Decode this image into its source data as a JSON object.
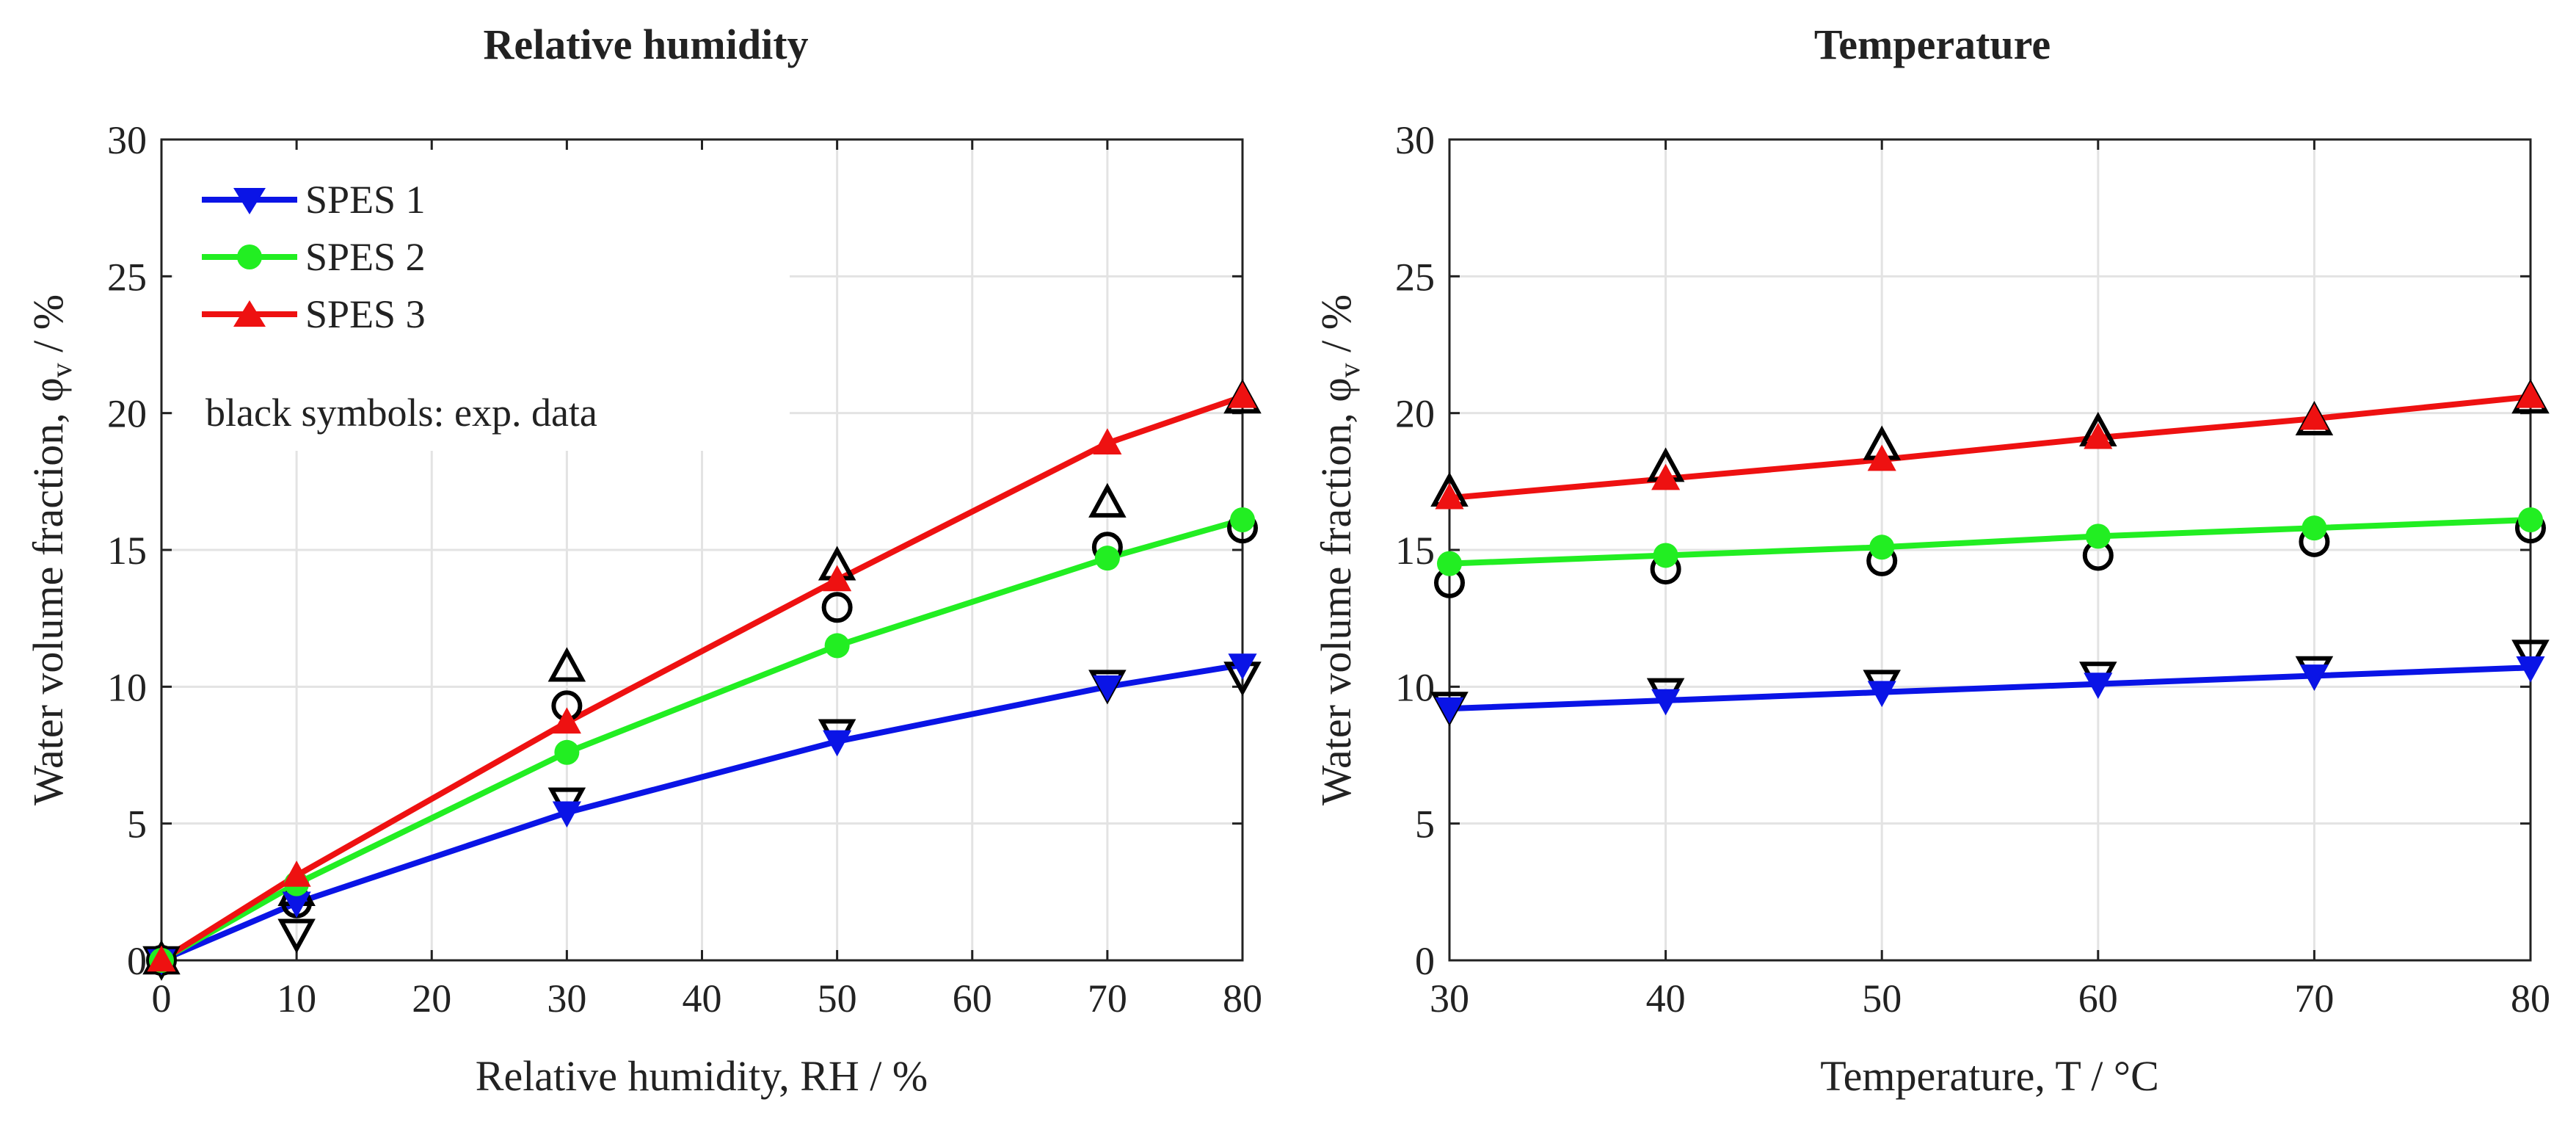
{
  "figure": {
    "legend": {
      "entries": [
        "SPES 1",
        "SPES 2",
        "SPES 3"
      ],
      "note": "black symbols: exp. data",
      "placement": "top-left (left panel)"
    }
  },
  "colors": {
    "spes1": "#0a14e6",
    "spes2": "#22ee22",
    "spes3": "#ee1111",
    "experimental": "#000000",
    "grid": "#e3e3e3",
    "axes": "#222222"
  },
  "chart_data": [
    {
      "type": "line",
      "title": "Relative humidity",
      "xlabel": "Relative humidity, RH / %",
      "ylabel": "Water volume fraction, φ",
      "ylabel_sub": "v",
      "ylabel_suffix": " / %",
      "xlim": [
        0,
        80
      ],
      "ylim": [
        0,
        30
      ],
      "xticks": [
        0,
        10,
        20,
        30,
        40,
        50,
        60,
        70,
        80
      ],
      "yticks": [
        0,
        5,
        10,
        15,
        20,
        25,
        30
      ],
      "grid": true,
      "x": [
        0,
        10,
        30,
        50,
        70,
        80
      ],
      "series": [
        {
          "name": "SPES 1",
          "marker": "triangle-down",
          "color_key": "spes1",
          "values": [
            0,
            2.1,
            5.4,
            8.0,
            10.0,
            10.8
          ]
        },
        {
          "name": "SPES 2",
          "marker": "circle",
          "color_key": "spes2",
          "values": [
            0,
            2.8,
            7.6,
            11.5,
            14.7,
            16.1
          ]
        },
        {
          "name": "SPES 3",
          "marker": "triangle-up",
          "color_key": "spes3",
          "values": [
            0,
            3.1,
            8.7,
            13.9,
            18.9,
            20.6
          ]
        }
      ],
      "experimental": [
        {
          "name": "SPES 1",
          "marker": "triangle-down",
          "values": [
            0,
            1.0,
            5.8,
            8.3,
            10.1,
            10.4
          ]
        },
        {
          "name": "SPES 2",
          "marker": "circle",
          "values": [
            0,
            2.1,
            9.3,
            12.9,
            15.1,
            15.8
          ]
        },
        {
          "name": "SPES 3",
          "marker": "triangle-up",
          "values": [
            0,
            2.5,
            10.7,
            14.4,
            16.7,
            20.5
          ]
        }
      ]
    },
    {
      "type": "line",
      "title": "Temperature",
      "xlabel": "Temperature, T / °C",
      "ylabel": "Water volume fraction, φ",
      "ylabel_sub": "v",
      "ylabel_suffix": " / %",
      "xlim": [
        30,
        80
      ],
      "ylim": [
        0,
        30
      ],
      "xticks": [
        30,
        40,
        50,
        60,
        70,
        80
      ],
      "yticks": [
        0,
        5,
        10,
        15,
        20,
        25,
        30
      ],
      "grid": true,
      "x": [
        30,
        40,
        50,
        60,
        70,
        80
      ],
      "series": [
        {
          "name": "SPES 1",
          "marker": "triangle-down",
          "color_key": "spes1",
          "values": [
            9.2,
            9.5,
            9.8,
            10.1,
            10.4,
            10.7
          ]
        },
        {
          "name": "SPES 2",
          "marker": "circle",
          "color_key": "spes2",
          "values": [
            14.5,
            14.8,
            15.1,
            15.5,
            15.8,
            16.1
          ]
        },
        {
          "name": "SPES 3",
          "marker": "triangle-up",
          "color_key": "spes3",
          "values": [
            16.9,
            17.6,
            18.3,
            19.1,
            19.8,
            20.6
          ]
        }
      ],
      "experimental": [
        {
          "name": "SPES 1",
          "marker": "triangle-down",
          "values": [
            9.3,
            9.8,
            10.1,
            10.4,
            10.6,
            11.2
          ]
        },
        {
          "name": "SPES 2",
          "marker": "circle",
          "values": [
            13.8,
            14.3,
            14.6,
            14.8,
            15.3,
            15.8
          ]
        },
        {
          "name": "SPES 3",
          "marker": "triangle-up",
          "values": [
            17.1,
            18.0,
            18.8,
            19.3,
            19.7,
            20.5
          ]
        }
      ]
    }
  ]
}
